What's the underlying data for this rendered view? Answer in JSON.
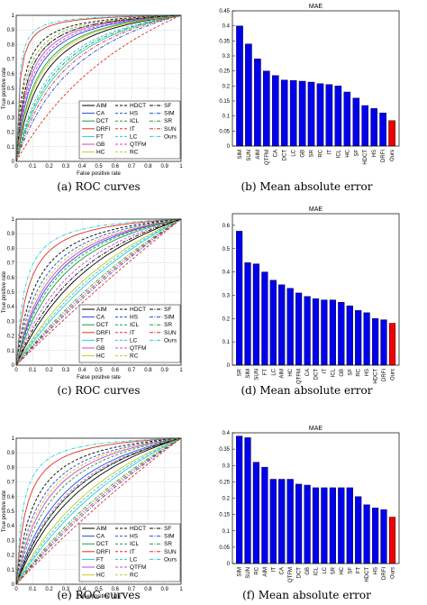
{
  "chart_data": [
    {
      "panel": "a",
      "type": "line",
      "caption": "(a) ROC curves",
      "xlabel": "False positive rate",
      "ylabel": "True positive rate",
      "xlim": [
        0,
        1
      ],
      "ylim": [
        0,
        1
      ],
      "ticks": [
        "0",
        "0.1",
        "0.2",
        "0.3",
        "0.4",
        "0.5",
        "0.6",
        "0.7",
        "0.8",
        "0.9",
        "1"
      ],
      "grid": true,
      "legend_position": "bottom-right",
      "series": [
        {
          "name": "AIM",
          "color": "#000000",
          "dash": "solid",
          "k": 0.14
        },
        {
          "name": "CA",
          "color": "#1f4ed8",
          "dash": "solid",
          "k": 0.09
        },
        {
          "name": "DCT",
          "color": "#1a9a3a",
          "dash": "solid",
          "k": 0.11
        },
        {
          "name": "DRFI",
          "color": "#e0301e",
          "dash": "solid",
          "k": 0.02
        },
        {
          "name": "FT",
          "color": "#28c8d8",
          "dash": "solid",
          "k": 0.22
        },
        {
          "name": "GB",
          "color": "#d040d0",
          "dash": "solid",
          "k": 0.07
        },
        {
          "name": "HC",
          "color": "#c8c828",
          "dash": "solid",
          "k": 0.12
        },
        {
          "name": "HDCT",
          "color": "#000000",
          "dash": "dashed",
          "k": 0.04
        },
        {
          "name": "HS",
          "color": "#1f4ed8",
          "dash": "dashed",
          "k": 0.05
        },
        {
          "name": "ICL",
          "color": "#1a9a3a",
          "dash": "dashed",
          "k": 0.06
        },
        {
          "name": "IT",
          "color": "#e0301e",
          "dash": "dashed",
          "k": 0.5
        },
        {
          "name": "LC",
          "color": "#28c8d8",
          "dash": "dashed",
          "k": 0.18
        },
        {
          "name": "QTFM",
          "color": "#d040d0",
          "dash": "dashed",
          "k": 0.08
        },
        {
          "name": "RC",
          "color": "#c8c828",
          "dash": "dashed",
          "k": 0.05
        },
        {
          "name": "SF",
          "color": "#000000",
          "dash": "dashdot",
          "k": 0.06
        },
        {
          "name": "SIM",
          "color": "#1f4ed8",
          "dash": "dashdot",
          "k": 0.3
        },
        {
          "name": "SR",
          "color": "#1a9a3a",
          "dash": "dashdot",
          "k": 0.2
        },
        {
          "name": "SUN",
          "color": "#e0301e",
          "dash": "dashdot",
          "k": 0.25
        },
        {
          "name": "Ours",
          "color": "#28c8d8",
          "dash": "dashdot",
          "k": 0.015
        }
      ]
    },
    {
      "panel": "b",
      "type": "bar",
      "caption": "(b) Mean absolute error",
      "title": "MAE",
      "ylim": [
        0,
        0.45
      ],
      "yticks": [
        "0",
        "0.05",
        "0.1",
        "0.15",
        "0.2",
        "0.25",
        "0.3",
        "0.35",
        "0.4",
        "0.45"
      ],
      "categories": [
        "SIM",
        "SUN",
        "AIM",
        "QTFM",
        "CA",
        "DCT",
        "LC",
        "GB",
        "SR",
        "RC",
        "IT",
        "ICL",
        "HC",
        "SF",
        "HDCT",
        "HS",
        "DRFI",
        "Ours"
      ],
      "values": [
        0.4,
        0.34,
        0.29,
        0.25,
        0.235,
        0.22,
        0.218,
        0.216,
        0.213,
        0.208,
        0.205,
        0.2,
        0.18,
        0.16,
        0.135,
        0.125,
        0.11,
        0.085
      ],
      "colors": {
        "bar": "#0000ee",
        "highlight": "#ee0000",
        "highlight_category": "Ours"
      }
    },
    {
      "panel": "c",
      "type": "line",
      "caption": "(c) ROC curves",
      "xlabel": "False positive rate",
      "ylabel": "True positive rate",
      "xlim": [
        0,
        1
      ],
      "ylim": [
        0,
        1
      ],
      "ticks": [
        "0",
        "0.1",
        "0.2",
        "0.3",
        "0.4",
        "0.5",
        "0.6",
        "0.7",
        "0.8",
        "0.9",
        "1"
      ],
      "grid": true,
      "legend_position": "bottom-right",
      "series": [
        {
          "name": "AIM",
          "color": "#000000",
          "dash": "solid",
          "k": 0.4
        },
        {
          "name": "CA",
          "color": "#1f4ed8",
          "dash": "solid",
          "k": 0.2
        },
        {
          "name": "DCT",
          "color": "#1a9a3a",
          "dash": "solid",
          "k": 0.25
        },
        {
          "name": "DRFI",
          "color": "#e0301e",
          "dash": "solid",
          "k": 0.07
        },
        {
          "name": "FT",
          "color": "#28c8d8",
          "dash": "solid",
          "k": 0.6
        },
        {
          "name": "GB",
          "color": "#d040d0",
          "dash": "solid",
          "k": 0.18
        },
        {
          "name": "HC",
          "color": "#c8c828",
          "dash": "solid",
          "k": 0.5
        },
        {
          "name": "HDCT",
          "color": "#000000",
          "dash": "dashed",
          "k": 0.11
        },
        {
          "name": "HS",
          "color": "#1f4ed8",
          "dash": "dashed",
          "k": 0.14
        },
        {
          "name": "ICL",
          "color": "#1a9a3a",
          "dash": "dashed",
          "k": 0.22
        },
        {
          "name": "IT",
          "color": "#e0301e",
          "dash": "dashed",
          "k": 0.9
        },
        {
          "name": "LC",
          "color": "#28c8d8",
          "dash": "dashed",
          "k": 0.55
        },
        {
          "name": "QTFM",
          "color": "#d040d0",
          "dash": "dashed",
          "k": 0.3
        },
        {
          "name": "RC",
          "color": "#c8c828",
          "dash": "dashed",
          "k": 0.16
        },
        {
          "name": "SF",
          "color": "#000000",
          "dash": "dashdot",
          "k": 0.35
        },
        {
          "name": "SIM",
          "color": "#1f4ed8",
          "dash": "dashdot",
          "k": 0.8
        },
        {
          "name": "SR",
          "color": "#1a9a3a",
          "dash": "dashdot",
          "k": 0.7
        },
        {
          "name": "SUN",
          "color": "#e0301e",
          "dash": "dashdot",
          "k": 0.75
        },
        {
          "name": "Ours",
          "color": "#28c8d8",
          "dash": "dashdot",
          "k": 0.05
        }
      ]
    },
    {
      "panel": "d",
      "type": "bar",
      "caption": "(d) Mean absolute error",
      "title": "MAE",
      "ylim": [
        0,
        0.65
      ],
      "yticks": [
        "0",
        "0.1",
        "0.2",
        "0.3",
        "0.4",
        "0.5",
        "0.6"
      ],
      "categories": [
        "SR",
        "SIM",
        "SUN",
        "FT",
        "LC",
        "AIM",
        "HC",
        "QTFM",
        "CA",
        "DCT",
        "IT",
        "ICL",
        "GB",
        "SF",
        "RC",
        "HS",
        "HDCT",
        "DRFI",
        "Ours"
      ],
      "values": [
        0.575,
        0.44,
        0.435,
        0.4,
        0.365,
        0.345,
        0.33,
        0.31,
        0.295,
        0.285,
        0.28,
        0.28,
        0.27,
        0.255,
        0.235,
        0.225,
        0.2,
        0.195,
        0.18
      ],
      "colors": {
        "bar": "#0000ee",
        "highlight": "#ee0000",
        "highlight_category": "Ours"
      }
    },
    {
      "panel": "e",
      "type": "line",
      "caption": "(e) ROC curves",
      "xlabel": "False positive rate",
      "ylabel": "True positive rate",
      "xlim": [
        0,
        1
      ],
      "ylim": [
        0,
        1
      ],
      "ticks": [
        "0",
        "0.1",
        "0.2",
        "0.3",
        "0.4",
        "0.5",
        "0.6",
        "0.7",
        "0.8",
        "0.9",
        "1"
      ],
      "grid": true,
      "legend_position": "bottom-right",
      "series": [
        {
          "name": "AIM",
          "color": "#000000",
          "dash": "solid",
          "k": 0.35
        },
        {
          "name": "CA",
          "color": "#1f4ed8",
          "dash": "solid",
          "k": 0.25
        },
        {
          "name": "DCT",
          "color": "#1a9a3a",
          "dash": "solid",
          "k": 0.3
        },
        {
          "name": "DRFI",
          "color": "#e0301e",
          "dash": "solid",
          "k": 0.06
        },
        {
          "name": "FT",
          "color": "#28c8d8",
          "dash": "solid",
          "k": 0.55
        },
        {
          "name": "GB",
          "color": "#d040d0",
          "dash": "solid",
          "k": 0.17
        },
        {
          "name": "HC",
          "color": "#c8c828",
          "dash": "solid",
          "k": 0.45
        },
        {
          "name": "HDCT",
          "color": "#000000",
          "dash": "dashed",
          "k": 0.1
        },
        {
          "name": "HS",
          "color": "#1f4ed8",
          "dash": "dashed",
          "k": 0.13
        },
        {
          "name": "ICL",
          "color": "#1a9a3a",
          "dash": "dashed",
          "k": 0.2
        },
        {
          "name": "IT",
          "color": "#e0301e",
          "dash": "dashed",
          "k": 0.85
        },
        {
          "name": "LC",
          "color": "#28c8d8",
          "dash": "dashed",
          "k": 0.5
        },
        {
          "name": "QTFM",
          "color": "#d040d0",
          "dash": "dashed",
          "k": 0.28
        },
        {
          "name": "RC",
          "color": "#c8c828",
          "dash": "dashed",
          "k": 0.15
        },
        {
          "name": "SF",
          "color": "#000000",
          "dash": "dashdot",
          "k": 0.3
        },
        {
          "name": "SIM",
          "color": "#1f4ed8",
          "dash": "dashdot",
          "k": 0.75
        },
        {
          "name": "SR",
          "color": "#1a9a3a",
          "dash": "dashdot",
          "k": 0.65
        },
        {
          "name": "SUN",
          "color": "#e0301e",
          "dash": "dashdot",
          "k": 0.7
        },
        {
          "name": "Ours",
          "color": "#28c8d8",
          "dash": "dashdot",
          "k": 0.04
        }
      ]
    },
    {
      "panel": "f",
      "type": "bar",
      "caption": "(f) Mean absolute error",
      "title": "MAE",
      "ylim": [
        0,
        0.4
      ],
      "yticks": [
        "0",
        "0.05",
        "0.1",
        "0.15",
        "0.2",
        "0.25",
        "0.3",
        "0.35",
        "0.4"
      ],
      "categories": [
        "SIM",
        "SUN",
        "RC",
        "AIM",
        "IT",
        "CA",
        "QTFM",
        "DCT",
        "GB",
        "ICL",
        "LC",
        "SR",
        "HC",
        "SF",
        "FT",
        "HDCT",
        "HS",
        "DRFI",
        "Ours"
      ],
      "values": [
        0.39,
        0.385,
        0.31,
        0.295,
        0.258,
        0.258,
        0.258,
        0.243,
        0.24,
        0.232,
        0.232,
        0.232,
        0.232,
        0.232,
        0.205,
        0.18,
        0.17,
        0.165,
        0.142
      ],
      "colors": {
        "bar": "#0000ee",
        "highlight": "#ee0000",
        "highlight_category": "Ours"
      }
    }
  ]
}
